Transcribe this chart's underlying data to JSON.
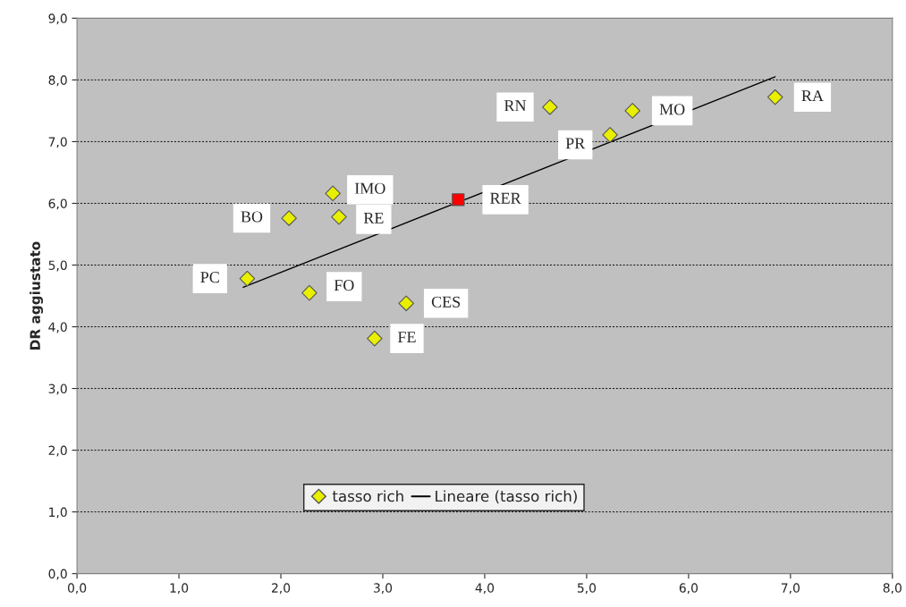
{
  "chart_data": {
    "type": "scatter",
    "ylabel": "DR aggiustato",
    "xlim": [
      0,
      8
    ],
    "ylim": [
      0,
      9
    ],
    "xticks": [
      {
        "value": 0,
        "label": "0,0"
      },
      {
        "value": 1,
        "label": "1,0"
      },
      {
        "value": 2,
        "label": "2,0"
      },
      {
        "value": 3,
        "label": "3,0"
      },
      {
        "value": 4,
        "label": "4,0"
      },
      {
        "value": 5,
        "label": "5,0"
      },
      {
        "value": 6,
        "label": "6,0"
      },
      {
        "value": 7,
        "label": "7,0"
      },
      {
        "value": 8,
        "label": "8,0"
      }
    ],
    "yticks": [
      {
        "value": 0,
        "label": "0,0"
      },
      {
        "value": 1,
        "label": "1,0"
      },
      {
        "value": 2,
        "label": "2,0"
      },
      {
        "value": 3,
        "label": "3,0"
      },
      {
        "value": 4,
        "label": "4,0"
      },
      {
        "value": 5,
        "label": "5,0"
      },
      {
        "value": 6,
        "label": "6,0"
      },
      {
        "value": 7,
        "label": "7,0"
      },
      {
        "value": 8,
        "label": "8,0"
      },
      {
        "value": 9,
        "label": "9,0"
      }
    ],
    "grid": "y",
    "legend": "bottom",
    "series": [
      {
        "name": "tasso rich",
        "marker": "diamond",
        "color": "#e8f000",
        "x": [
          1.67,
          2.08,
          2.51,
          2.57,
          2.28,
          2.92,
          3.23,
          4.64,
          5.23,
          5.45,
          6.85
        ],
        "values": [
          4.78,
          5.76,
          6.16,
          5.78,
          4.55,
          3.81,
          4.38,
          7.56,
          7.11,
          7.5,
          7.72
        ]
      },
      {
        "marker": "square",
        "color": "#ff0000",
        "x": [
          3.74
        ],
        "values": [
          6.06
        ]
      },
      {
        "name": "Lineare (tasso rich)",
        "type": "line",
        "marker": "none",
        "color": "#000000",
        "x": [
          1.63,
          6.85
        ],
        "values": [
          4.64,
          8.05
        ]
      }
    ],
    "annotations": [
      {
        "text": "PC",
        "x": 1.67,
        "y": 4.78
      },
      {
        "text": "BO",
        "x": 2.08,
        "y": 5.76
      },
      {
        "text": "IMO",
        "x": 2.51,
        "y": 6.16
      },
      {
        "text": "RE",
        "x": 2.57,
        "y": 5.78
      },
      {
        "text": "FO",
        "x": 2.28,
        "y": 4.55
      },
      {
        "text": "FE",
        "x": 2.92,
        "y": 3.81
      },
      {
        "text": "CES",
        "x": 3.23,
        "y": 4.38
      },
      {
        "text": "RER",
        "x": 3.74,
        "y": 6.06
      },
      {
        "text": "RN",
        "x": 4.64,
        "y": 7.56
      },
      {
        "text": "PR",
        "x": 5.23,
        "y": 7.11
      },
      {
        "text": "MO",
        "x": 5.45,
        "y": 7.5
      },
      {
        "text": "RA",
        "x": 6.85,
        "y": 7.72
      }
    ]
  }
}
